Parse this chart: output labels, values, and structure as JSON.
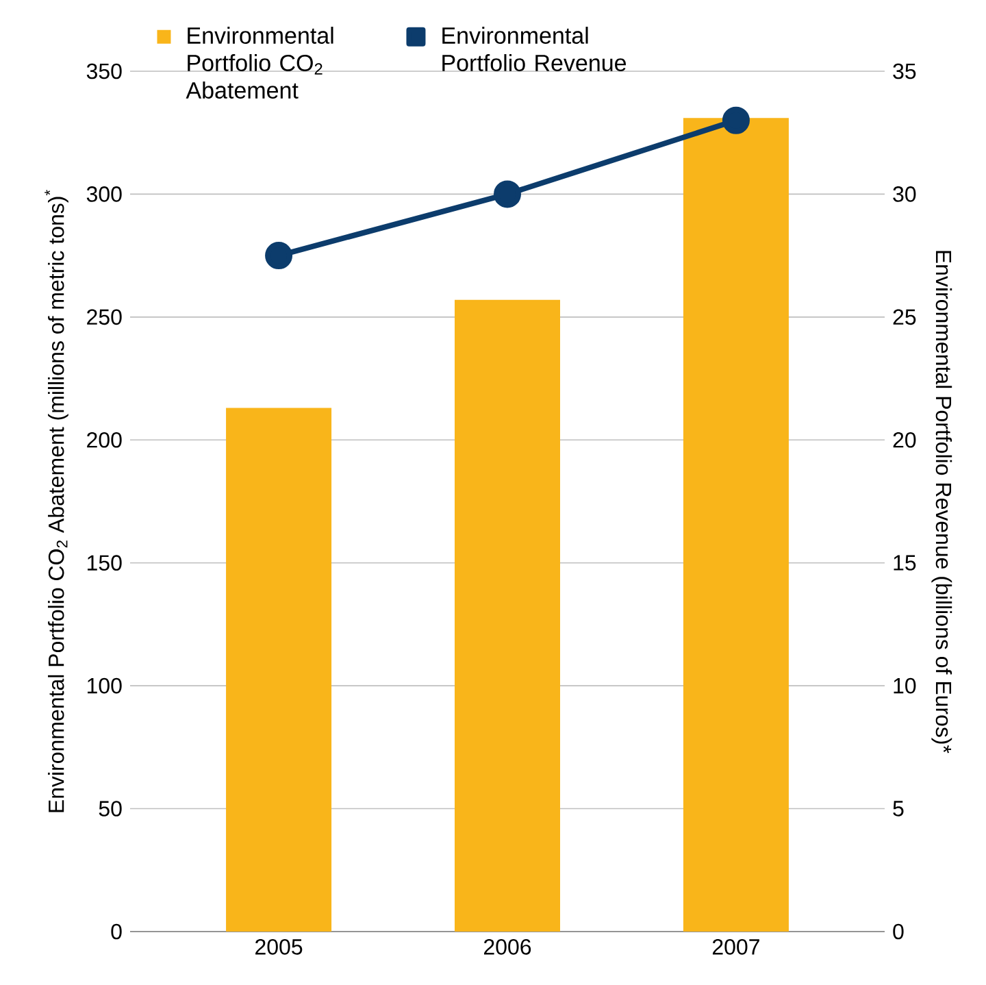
{
  "chart_data": {
    "type": "bar",
    "categories": [
      "2005",
      "2006",
      "2007"
    ],
    "ylabel": "Environmental Portfolio CO$_{2}$ Abatement (millions of metric tons)$^{*}$",
    "y2label": "Environmental Portfolio Revenue (billions of Euros)*",
    "series": [
      {
        "name": "Environmental Portfolio CO$_{2}$ Abatement",
        "color": "#f9b51a",
        "values": [
          213,
          257,
          331
        ]
      },
      {
        "name": "Environmental Portfolio Revenue",
        "type": "line",
        "axis": "y2",
        "color": "#0c3c6c",
        "values": [
          27.5,
          30,
          33
        ]
      }
    ],
    "ylim": [
      0,
      350
    ],
    "yticks": [
      0,
      50,
      100,
      150,
      200,
      250,
      300,
      350
    ],
    "y2lim": [
      0,
      35
    ],
    "y2ticks": [
      0,
      5,
      10,
      15,
      20,
      25,
      30,
      35
    ],
    "grid": "y",
    "legend": "top left",
    "marker": "circle"
  }
}
